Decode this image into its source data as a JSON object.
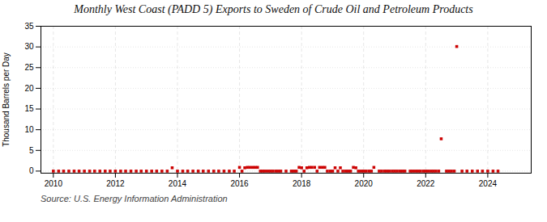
{
  "chart_data": {
    "type": "scatter",
    "title": "Monthly West Coast (PADD 5) Exports to Sweden of Crude Oil and Petroleum Products",
    "ylabel": "Thousand Barrels per Day",
    "caption": "Source: U.S. Energy Information Administration",
    "color": "#cc0000",
    "marker": "square",
    "grid": true,
    "xlim": [
      2009.6,
      2025.4
    ],
    "xticks": [
      2010,
      2012,
      2014,
      2016,
      2018,
      2020,
      2022,
      2024
    ],
    "ylim": [
      -0.5,
      35
    ],
    "yticks": [
      0,
      5,
      10,
      15,
      20,
      25,
      30,
      35
    ],
    "x": [
      2010.0,
      2010.17,
      2010.33,
      2010.5,
      2010.67,
      2010.83,
      2011.0,
      2011.17,
      2011.33,
      2011.5,
      2011.67,
      2011.83,
      2012.0,
      2012.17,
      2012.33,
      2012.5,
      2012.67,
      2012.83,
      2013.0,
      2013.17,
      2013.33,
      2013.5,
      2013.67,
      2013.83,
      2014.0,
      2014.17,
      2014.33,
      2014.5,
      2014.67,
      2014.83,
      2015.0,
      2015.17,
      2015.33,
      2015.5,
      2015.67,
      2015.83,
      2016.0,
      2016.08,
      2016.17,
      2016.25,
      2016.33,
      2016.42,
      2016.5,
      2016.58,
      2016.67,
      2016.75,
      2016.83,
      2016.92,
      2017.0,
      2017.08,
      2017.17,
      2017.25,
      2017.33,
      2017.5,
      2017.67,
      2017.75,
      2017.83,
      2017.92,
      2018.0,
      2018.08,
      2018.17,
      2018.25,
      2018.33,
      2018.42,
      2018.5,
      2018.58,
      2018.67,
      2018.75,
      2018.83,
      2018.92,
      2019.0,
      2019.08,
      2019.17,
      2019.25,
      2019.33,
      2019.42,
      2019.5,
      2019.58,
      2019.67,
      2019.75,
      2019.83,
      2019.92,
      2020.0,
      2020.08,
      2020.17,
      2020.25,
      2020.33,
      2020.5,
      2020.58,
      2020.67,
      2020.75,
      2020.83,
      2020.92,
      2021.0,
      2021.08,
      2021.17,
      2021.25,
      2021.33,
      2021.5,
      2021.58,
      2021.67,
      2021.75,
      2021.83,
      2021.92,
      2022.0,
      2022.08,
      2022.17,
      2022.25,
      2022.33,
      2022.42,
      2022.5,
      2022.67,
      2022.75,
      2022.83,
      2022.92,
      2023.0,
      2023.17,
      2023.33,
      2023.5,
      2023.67,
      2023.83,
      2024.0,
      2024.17,
      2024.33
    ],
    "values": [
      0.0,
      0.0,
      0.0,
      0.0,
      0.0,
      0.0,
      0.0,
      0.0,
      0.0,
      0.0,
      0.0,
      0.0,
      0.0,
      0.0,
      0.0,
      0.0,
      0.0,
      0.0,
      0.0,
      0.0,
      0.0,
      0.0,
      0.0,
      0.8,
      0.0,
      0.0,
      0.0,
      0.0,
      0.0,
      0.0,
      0.0,
      0.0,
      0.0,
      0.0,
      0.0,
      0.0,
      0.9,
      0.0,
      0.8,
      0.9,
      0.9,
      0.9,
      0.9,
      0.9,
      0.0,
      0.0,
      0.0,
      0.0,
      0.0,
      0.0,
      0.0,
      0.0,
      0.0,
      0.0,
      0.0,
      0.0,
      0.0,
      0.9,
      0.8,
      0.0,
      0.8,
      0.9,
      0.9,
      0.9,
      0.0,
      0.9,
      0.9,
      0.9,
      0.0,
      0.0,
      0.0,
      0.8,
      0.0,
      0.8,
      0.0,
      0.0,
      0.0,
      0.0,
      0.9,
      0.8,
      0.0,
      0.0,
      0.0,
      0.0,
      0.0,
      0.0,
      0.9,
      0.0,
      0.0,
      0.0,
      0.0,
      0.0,
      0.0,
      0.0,
      0.0,
      0.0,
      0.0,
      0.0,
      0.0,
      0.0,
      0.0,
      0.0,
      0.0,
      0.0,
      0.0,
      0.0,
      0.0,
      0.0,
      0.0,
      0.0,
      7.8,
      0.0,
      0.0,
      0.0,
      0.0,
      30.1,
      0.0,
      0.0,
      0.0,
      0.0,
      0.0,
      0.0,
      0.0,
      0.0
    ]
  }
}
